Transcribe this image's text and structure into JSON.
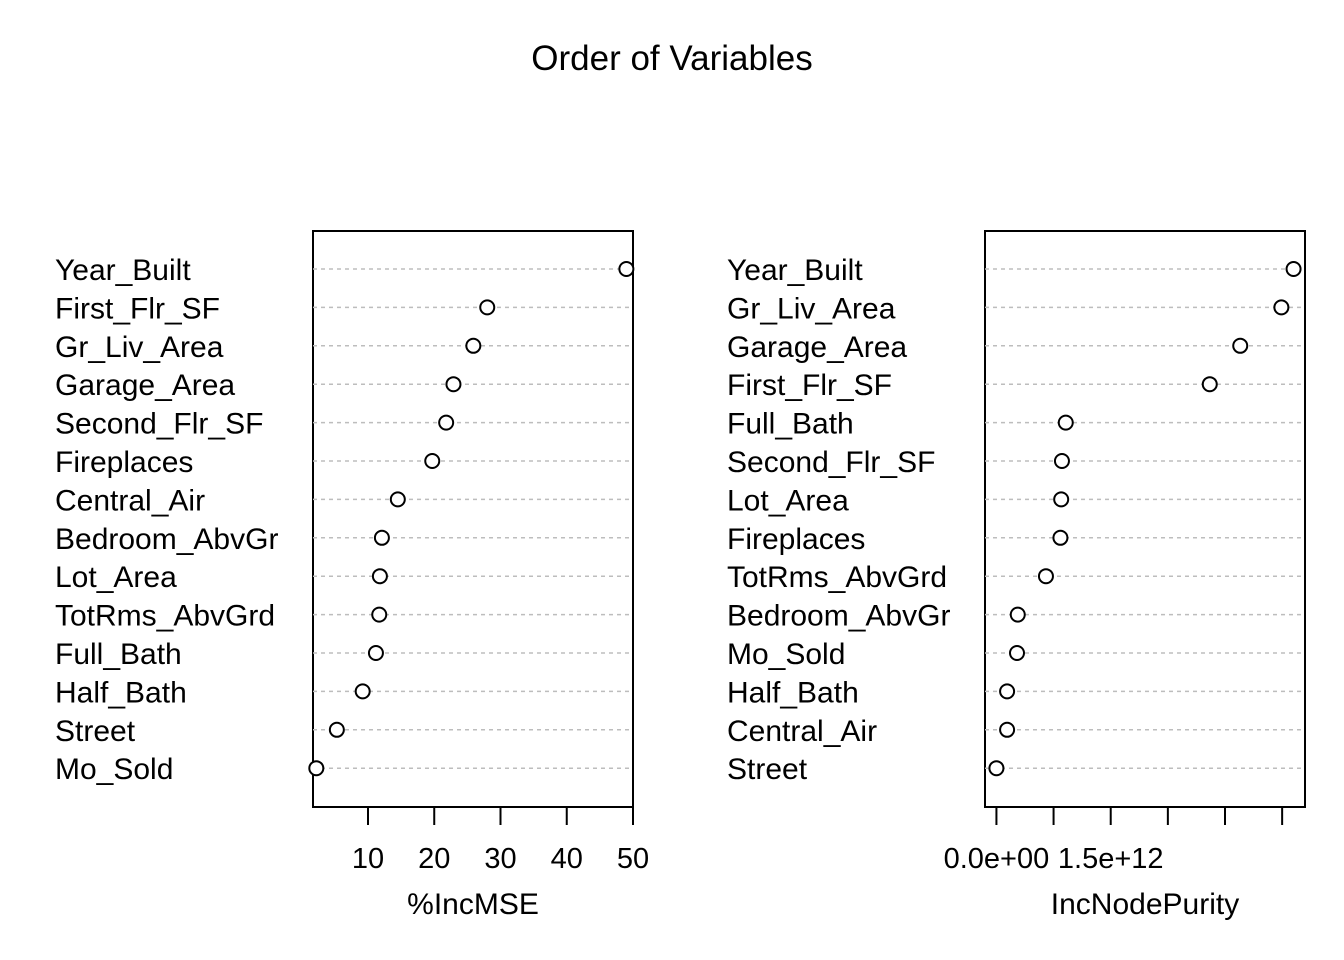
{
  "title": "Order of Variables",
  "chart_data": [
    {
      "type": "scatter",
      "title": "",
      "xlabel": "%IncMSE",
      "ylabel": "",
      "categories": [
        "Year_Built",
        "First_Flr_SF",
        "Gr_Liv_Area",
        "Garage_Area",
        "Second_Flr_SF",
        "Fireplaces",
        "Central_Air",
        "Bedroom_AbvGr",
        "Lot_Area",
        "TotRms_AbvGrd",
        "Full_Bath",
        "Half_Bath",
        "Street",
        "Mo_Sold"
      ],
      "values": [
        49.0,
        28.0,
        25.9,
        22.9,
        21.8,
        19.7,
        14.5,
        12.1,
        11.8,
        11.7,
        11.2,
        9.2,
        5.3,
        2.2
      ],
      "xlim": [
        1.7,
        50.0
      ],
      "xticks": [
        10,
        20,
        30,
        40,
        50
      ],
      "xtick_labels": [
        "10",
        "20",
        "30",
        "40",
        "50"
      ],
      "grid": true,
      "legend": "none"
    },
    {
      "type": "scatter",
      "title": "",
      "xlabel": "IncNodePurity",
      "ylabel": "",
      "categories": [
        "Year_Built",
        "Gr_Liv_Area",
        "Garage_Area",
        "First_Flr_SF",
        "Full_Bath",
        "Second_Flr_SF",
        "Lot_Area",
        "Fireplaces",
        "TotRms_AbvGrd",
        "Bedroom_AbvGr",
        "Mo_Sold",
        "Half_Bath",
        "Central_Air",
        "Street"
      ],
      "values": [
        3900000000000.0,
        3740000000000.0,
        3200000000000.0,
        2800000000000.0,
        910000000000.0,
        860000000000.0,
        850000000000.0,
        840000000000.0,
        650000000000.0,
        280000000000.0,
        270000000000.0,
        140000000000.0,
        140000000000.0,
        0
      ],
      "xlim": [
        -150000000000.0,
        4050000000000.0
      ],
      "xticks": [
        0,
        750000000000.0,
        1500000000000.0,
        2250000000000.0,
        3000000000000.0,
        3750000000000.0
      ],
      "xtick_labels": [
        "0.0e+00",
        "",
        "1.5e+12",
        "",
        "",
        ""
      ],
      "grid": true,
      "legend": "none"
    }
  ]
}
